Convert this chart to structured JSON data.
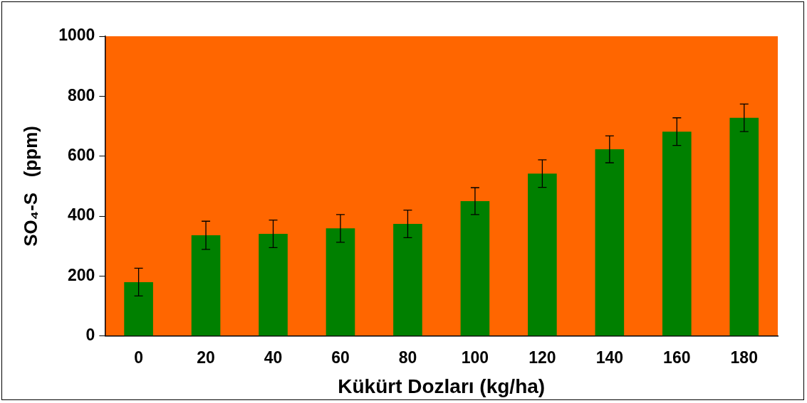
{
  "chart_data": {
    "type": "bar",
    "xlabel": "Kükürt Dozları (kg/ha)",
    "ylabel": "SO₄-S   (ppm)",
    "categories": [
      "0",
      "20",
      "40",
      "60",
      "80",
      "100",
      "120",
      "140",
      "160",
      "180"
    ],
    "values": [
      180,
      336,
      341,
      359,
      374,
      450,
      542,
      623,
      682,
      728
    ],
    "errors": [
      46,
      47,
      46,
      46,
      46,
      45,
      46,
      45,
      46,
      46
    ],
    "color": "#008000",
    "ylim": [
      0,
      1000
    ],
    "yticks": [
      0,
      200,
      400,
      600,
      800,
      1000
    ],
    "grid": false,
    "legend": false
  }
}
